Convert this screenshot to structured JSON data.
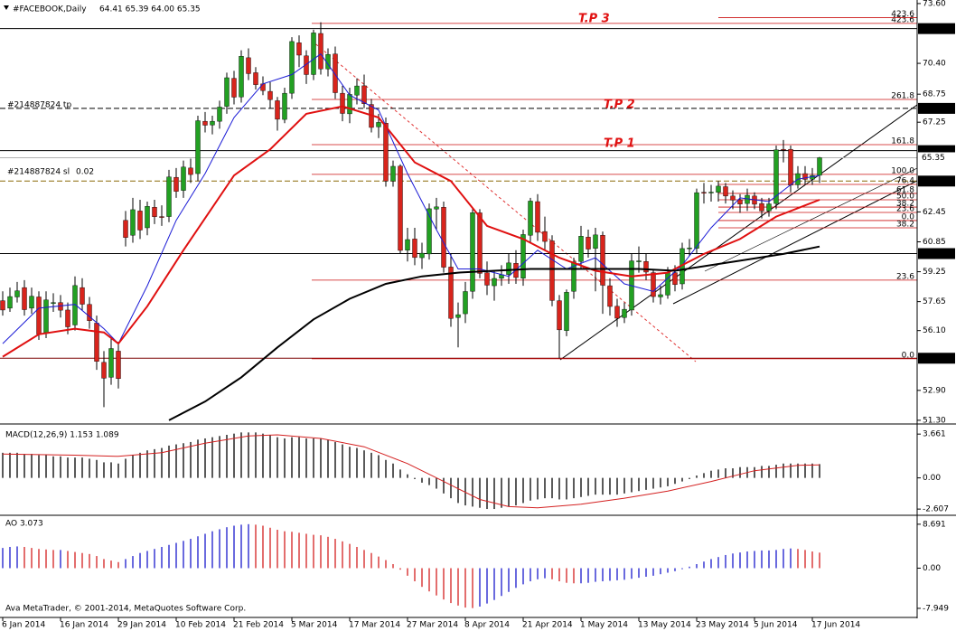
{
  "chart_data": [
    {
      "type": "candlestick",
      "title": "#FACEBOOK,Daily",
      "subtitle": "64.41 65.39 64.00 65.35",
      "open": [
        57.7,
        57.3,
        57.9,
        58.4,
        57.3,
        57.9,
        56.0,
        57.6,
        57.6,
        57.2,
        56.4,
        58.4,
        57.5,
        56.5,
        54.4,
        53.6,
        55.0,
        62.0,
        61.2,
        62.5,
        61.6,
        62.7,
        62.2,
        62.2,
        64.3,
        63.6,
        64.8,
        64.5,
        67.3,
        67.1,
        67.3,
        68.1,
        69.6,
        68.6,
        70.7,
        69.9,
        69.3,
        68.9,
        68.4,
        67.4,
        68.8,
        71.5,
        70.8,
        69.8,
        72.0,
        70.1,
        70.9,
        68.8,
        67.7,
        68.7,
        69.2,
        68.2,
        67.0,
        67.2,
        64.1,
        64.9,
        60.4,
        61.0,
        60.0,
        60.2,
        62.6,
        62.7,
        59.5,
        56.8,
        57.0,
        58.2,
        62.4,
        59.2,
        58.5,
        58.9,
        59.1,
        59.7,
        58.9,
        61.2,
        63.0,
        61.4,
        60.9,
        57.7,
        56.1,
        58.2,
        59.8,
        61.1,
        60.5,
        61.2,
        58.5,
        57.4,
        56.8,
        57.2,
        59.8,
        59.8,
        59.2,
        57.9,
        58.0,
        59.2,
        58.6,
        60.5,
        60.5,
        63.5,
        63.5,
        63.5,
        63.8,
        63.3,
        63.1,
        62.9,
        63.3,
        62.9,
        62.5,
        62.9,
        65.8,
        65.8,
        63.9,
        64.5,
        64.2,
        64.41
      ],
      "high": [
        58.2,
        58.4,
        58.7,
        58.8,
        58.4,
        58.2,
        58.2,
        58.1,
        58.0,
        57.6,
        59.0,
        58.9,
        57.9,
        56.9,
        55.0,
        55.7,
        55.5,
        62.5,
        63.2,
        63.1,
        63.0,
        63.1,
        62.8,
        64.7,
        64.8,
        65.2,
        65.3,
        67.6,
        67.8,
        67.6,
        68.4,
        69.9,
        70.0,
        71.1,
        71.2,
        70.2,
        69.7,
        69.4,
        68.6,
        69.1,
        71.8,
        71.9,
        71.1,
        72.2,
        72.6,
        71.2,
        71.3,
        69.2,
        69.1,
        69.6,
        69.8,
        68.5,
        67.7,
        67.5,
        65.2,
        65.0,
        61.6,
        61.6,
        60.8,
        62.9,
        63.2,
        63.0,
        60.2,
        57.6,
        58.7,
        62.6,
        62.6,
        59.8,
        59.3,
        59.6,
        60.2,
        60.4,
        61.5,
        63.2,
        63.4,
        62.2,
        61.2,
        58.0,
        58.3,
        60.0,
        61.7,
        61.5,
        61.6,
        61.4,
        58.9,
        57.8,
        57.6,
        60.2,
        60.6,
        60.2,
        59.4,
        58.5,
        59.5,
        59.6,
        60.8,
        61.0,
        63.7,
        64.0,
        63.9,
        64.1,
        64.0,
        63.6,
        63.4,
        63.7,
        63.5,
        63.2,
        63.2,
        66.0,
        66.3,
        66.0,
        64.9,
        64.9,
        64.8,
        65.39
      ],
      "low": [
        56.9,
        57.1,
        57.6,
        56.9,
        57.0,
        55.6,
        55.7,
        57.1,
        56.8,
        55.9,
        56.1,
        57.2,
        56.2,
        54.0,
        52.0,
        53.2,
        53.0,
        60.6,
        60.8,
        61.0,
        61.2,
        61.8,
        61.7,
        61.9,
        63.2,
        63.2,
        64.0,
        64.1,
        66.7,
        66.6,
        66.9,
        67.7,
        68.2,
        68.3,
        69.5,
        69.0,
        68.7,
        68.0,
        66.8,
        67.2,
        68.5,
        70.2,
        69.3,
        69.5,
        69.8,
        69.7,
        68.5,
        67.3,
        67.2,
        68.2,
        68.0,
        66.7,
        66.4,
        63.8,
        63.8,
        60.2,
        59.8,
        59.6,
        59.4,
        59.9,
        61.5,
        59.2,
        56.3,
        55.2,
        56.5,
        57.8,
        58.9,
        58.0,
        57.7,
        58.5,
        58.6,
        58.6,
        58.5,
        60.8,
        60.9,
        60.4,
        57.4,
        54.62,
        55.8,
        57.8,
        59.4,
        60.0,
        58.2,
        57.0,
        56.9,
        56.3,
        56.5,
        56.9,
        59.2,
        58.8,
        57.6,
        57.5,
        57.8,
        58.2,
        58.3,
        60.1,
        60.2,
        62.9,
        63.0,
        63.0,
        62.9,
        62.6,
        62.4,
        62.5,
        62.6,
        62.1,
        62.2,
        62.6,
        65.1,
        63.5,
        63.7,
        63.9,
        63.9,
        64.0
      ],
      "close": [
        57.2,
        57.92,
        58.23,
        57.22,
        57.94,
        55.91,
        57.74,
        57.6,
        57.19,
        56.3,
        58.51,
        57.51,
        56.63,
        54.45,
        53.55,
        55.14,
        53.53,
        61.08,
        62.57,
        61.48,
        62.75,
        62.19,
        62.16,
        64.32,
        63.55,
        64.85,
        64.45,
        67.33,
        67.09,
        67.3,
        68.06,
        69.63,
        68.59,
        70.78,
        69.85,
        69.26,
        68.94,
        68.46,
        67.41,
        68.8,
        71.57,
        70.84,
        69.8,
        72.03,
        70.1,
        70.88,
        68.83,
        67.72,
        68.74,
        69.19,
        68.24,
        66.97,
        67.24,
        64.1,
        64.89,
        60.39,
        60.97,
        60.01,
        60.24,
        62.62,
        62.72,
        59.49,
        56.75,
        56.95,
        58.19,
        62.41,
        59.16,
        58.53,
        58.89,
        59.09,
        59.72,
        58.94,
        61.24,
        63.03,
        61.36,
        60.87,
        57.71,
        56.14,
        58.15,
        59.78,
        61.15,
        60.46,
        61.22,
        58.53,
        57.39,
        56.76,
        57.24,
        59.83,
        59.83,
        59.23,
        57.92,
        58.02,
        59.21,
        58.56,
        60.49,
        60.52,
        63.48,
        63.48,
        63.51,
        63.83,
        63.3,
        63.08,
        62.87,
        63.34,
        62.86,
        62.5,
        62.88,
        65.77,
        65.78,
        63.88,
        64.5,
        64.19,
        64.4,
        65.35
      ],
      "up_color": "#22a022",
      "down_color": "#d8241c",
      "xlim": [
        -0.375,
        126.5
      ],
      "xticks": [
        {
          "value": 0,
          "label": "6 Jan 2014"
        },
        {
          "value": 8,
          "label": "16 Jan 2014"
        },
        {
          "value": 16,
          "label": "29 Jan 2014"
        },
        {
          "value": 24,
          "label": "10 Feb 2014"
        },
        {
          "value": 32,
          "label": "21 Feb 2014"
        },
        {
          "value": 40,
          "label": "5 Mar 2014"
        },
        {
          "value": 48,
          "label": "17 Mar 2014"
        },
        {
          "value": 56,
          "label": "27 Mar 2014"
        },
        {
          "value": 64,
          "label": "8 Apr 2014"
        },
        {
          "value": 72,
          "label": "21 Apr 2014"
        },
        {
          "value": 80,
          "label": "1 May 2014"
        },
        {
          "value": 88,
          "label": "13 May 2014"
        },
        {
          "value": 96,
          "label": "23 May 2014"
        },
        {
          "value": 104,
          "label": "5 Jun 2014"
        },
        {
          "value": 112,
          "label": "17 Jun 2014"
        }
      ],
      "ylim": [
        51.15,
        73.79
      ],
      "yticks": [
        {
          "value": 73.6,
          "label": "73.60"
        },
        {
          "value": 70.4,
          "label": "70.40"
        },
        68.75,
        67.25,
        62.45,
        60.85,
        59.25,
        57.65,
        {
          "value": 56.1,
          "label": "56.10"
        },
        {
          "value": 52.9,
          "label": "52.90"
        },
        {
          "value": 51.3,
          "label": "51.30"
        }
      ],
      "moving_averages": [
        {
          "color": "#1c1cd6",
          "x": [
            0,
            5,
            10,
            14,
            16,
            20,
            24,
            28,
            32,
            36,
            40,
            44,
            48,
            52,
            56,
            60,
            63,
            66,
            70,
            74,
            78,
            82,
            86,
            90,
            94,
            98,
            102,
            106,
            110,
            113
          ],
          "values": [
            55.4,
            57.3,
            57.5,
            56.2,
            55.4,
            58.5,
            62.0,
            64.5,
            67.5,
            69.3,
            69.8,
            70.9,
            68.7,
            67.9,
            64.5,
            61.5,
            59.4,
            59.4,
            59.0,
            60.4,
            59.4,
            60.0,
            58.6,
            58.2,
            59.6,
            61.6,
            63.2,
            63.0,
            64.2,
            64.4
          ]
        },
        {
          "color": "#e01010",
          "x": [
            0,
            5,
            10,
            14,
            16,
            20,
            25,
            32,
            37,
            42,
            47,
            52,
            57,
            62,
            67,
            72,
            77,
            82,
            87,
            92,
            97,
            102,
            107,
            113
          ],
          "values": [
            54.7,
            55.9,
            56.2,
            56.0,
            55.4,
            57.4,
            60.4,
            64.4,
            65.8,
            67.7,
            68.1,
            67.5,
            65.1,
            64.1,
            61.7,
            61.0,
            60.0,
            59.3,
            59.0,
            59.2,
            60.2,
            61.0,
            62.2,
            63.1
          ]
        },
        {
          "color": "#000000",
          "x": [
            23,
            28,
            33,
            38,
            43,
            48,
            53,
            58,
            63,
            68,
            73,
            78,
            83,
            88,
            93,
            98,
            103,
            108,
            113
          ],
          "values": [
            51.3,
            52.3,
            53.6,
            55.2,
            56.7,
            57.8,
            58.6,
            59.0,
            59.2,
            59.3,
            59.4,
            59.4,
            59.4,
            59.4,
            59.3,
            59.6,
            59.9,
            60.2,
            60.6
          ]
        }
      ],
      "price_lines": [
        {
          "value": 72.26,
          "color": "#000000"
        },
        {
          "value": 67.99,
          "color": "#000000",
          "dashed": true
        },
        {
          "value": 65.73,
          "color": "#000000"
        },
        {
          "value": 65.35,
          "color": "#b0b0b0"
        },
        {
          "value": 64.1,
          "label": "64.10",
          "color": "#8b6a08",
          "dashed": true
        },
        {
          "value": 60.22,
          "color": "#000000"
        },
        {
          "value": 54.62,
          "color": "#7a0000"
        }
      ],
      "fibo_main": [
        {
          "value": 72.54,
          "label": "423.6"
        },
        {
          "value": 68.47,
          "label": "261.8"
        },
        {
          "value": 66.05,
          "label": "161.8"
        },
        {
          "value": 64.46,
          "label": "100.0"
        },
        {
          "value": 58.8,
          "label": "23.6"
        },
        {
          "value": 54.59,
          "label": "0.0"
        }
      ],
      "fibo_small": [
        {
          "value": 72.85,
          "label": "423.6"
        },
        {
          "value": 63.92,
          "label": "76.4"
        },
        {
          "value": 63.44,
          "label": "61.8"
        },
        {
          "value": 63.1,
          "label": "50.0"
        },
        {
          "value": 62.71,
          "label": "38.2"
        },
        {
          "value": 62.42,
          "label": "23.6"
        },
        {
          "value": 61.99,
          "label": "0.0"
        },
        {
          "value": 61.6,
          "label": "38.2"
        }
      ],
      "fibo_color": "#cc1010",
      "order_labels": [
        "#214887824 tp",
        "#214887824 sl",
        "0.02"
      ],
      "annotations": [
        "T.P 3",
        "T.P 2",
        "T.P 1"
      ]
    },
    {
      "type": "macd",
      "title": "MACD(12,26,9) 1.153 1.089",
      "color": "#000000",
      "values": [
        2.1,
        2.1,
        2.1,
        2.0,
        2.0,
        1.9,
        1.9,
        1.8,
        1.8,
        1.7,
        1.7,
        1.7,
        1.6,
        1.5,
        1.3,
        1.3,
        1.2,
        1.6,
        1.9,
        2.1,
        2.3,
        2.4,
        2.5,
        2.7,
        2.8,
        2.9,
        3.0,
        3.2,
        3.3,
        3.4,
        3.5,
        3.6,
        3.7,
        3.8,
        3.8,
        3.8,
        3.7,
        3.6,
        3.4,
        3.3,
        3.4,
        3.4,
        3.3,
        3.3,
        3.3,
        3.2,
        3.0,
        2.8,
        2.6,
        2.5,
        2.3,
        2.1,
        1.9,
        1.5,
        1.2,
        0.7,
        0.3,
        -0.1,
        -0.4,
        -0.6,
        -0.9,
        -1.3,
        -1.7,
        -2.1,
        -2.3,
        -2.4,
        -2.5,
        -2.6,
        -2.6,
        -2.5,
        -2.4,
        -2.3,
        -2.1,
        -1.9,
        -1.8,
        -1.7,
        -1.7,
        -1.8,
        -1.8,
        -1.7,
        -1.6,
        -1.5,
        -1.4,
        -1.4,
        -1.4,
        -1.4,
        -1.3,
        -1.2,
        -1.1,
        -1.0,
        -0.9,
        -0.8,
        -0.7,
        -0.5,
        -0.3,
        -0.1,
        0.2,
        0.4,
        0.6,
        0.7,
        0.8,
        0.8,
        0.9,
        0.9,
        0.9,
        1.0,
        1.0,
        1.1,
        1.2,
        1.2,
        1.2,
        1.2,
        1.2,
        1.153
      ],
      "signal": {
        "color": "#d42020",
        "x": [
          0,
          10,
          16,
          22,
          28,
          34,
          38,
          44,
          50,
          56,
          60,
          66,
          70,
          74,
          80,
          86,
          92,
          98,
          104,
          110,
          113
        ],
        "values": [
          2.0,
          1.9,
          1.8,
          2.1,
          2.9,
          3.5,
          3.6,
          3.3,
          2.6,
          1.2,
          0.0,
          -1.8,
          -2.4,
          -2.5,
          -2.2,
          -1.7,
          -1.1,
          -0.3,
          0.6,
          1.05,
          1.089
        ]
      },
      "ylim": [
        -3.05,
        4.43
      ],
      "yticks": [
        3.661,
        {
          "value": 0,
          "label": "0.00"
        },
        -2.607
      ]
    },
    {
      "type": "bar",
      "title": "AO 3.073",
      "up_color": "#1a1acc",
      "down_color": "#d42020",
      "values": [
        4.0,
        4.2,
        4.3,
        4.2,
        4.0,
        3.8,
        3.7,
        3.6,
        3.6,
        3.4,
        3.2,
        3.0,
        2.8,
        2.4,
        1.8,
        1.5,
        1.2,
        1.8,
        2.4,
        3.0,
        3.4,
        3.8,
        4.2,
        4.6,
        5.0,
        5.4,
        5.8,
        6.3,
        6.8,
        7.3,
        7.7,
        8.1,
        8.4,
        8.6,
        8.7,
        8.6,
        8.4,
        8.0,
        7.6,
        7.3,
        7.2,
        7.0,
        6.8,
        6.6,
        6.5,
        6.2,
        5.8,
        5.3,
        4.8,
        4.2,
        3.6,
        3.0,
        2.3,
        1.6,
        0.8,
        -0.3,
        -1.5,
        -2.6,
        -3.7,
        -4.6,
        -5.4,
        -6.2,
        -6.9,
        -7.4,
        -7.8,
        -7.9,
        -7.6,
        -7.0,
        -6.3,
        -5.5,
        -4.7,
        -3.9,
        -3.2,
        -2.6,
        -2.2,
        -2.0,
        -2.2,
        -2.6,
        -2.9,
        -3.0,
        -3.0,
        -2.9,
        -2.7,
        -2.6,
        -2.5,
        -2.4,
        -2.3,
        -2.1,
        -1.9,
        -1.7,
        -1.5,
        -1.2,
        -0.9,
        -0.6,
        -0.2,
        0.3,
        0.8,
        1.3,
        1.8,
        2.2,
        2.6,
        2.9,
        3.1,
        3.3,
        3.4,
        3.5,
        3.5,
        3.6,
        3.8,
        3.9,
        3.8,
        3.6,
        3.3,
        3.073
      ],
      "ylim": [
        -9.57,
        10.28
      ],
      "yticks": [
        8.691,
        {
          "value": 0,
          "label": "0.00"
        },
        -7.949
      ]
    }
  ],
  "footer": "Ava MetaTrader, © 2001-2014, MetaQuotes Software Corp."
}
